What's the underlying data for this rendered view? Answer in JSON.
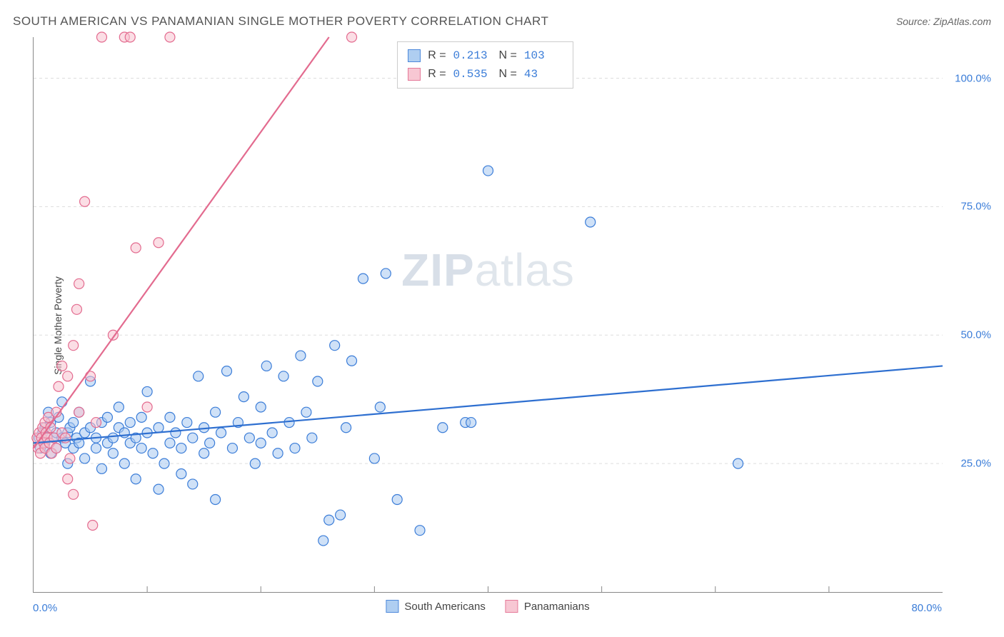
{
  "header": {
    "title": "SOUTH AMERICAN VS PANAMANIAN SINGLE MOTHER POVERTY CORRELATION CHART",
    "source_label": "Source: ZipAtlas.com"
  },
  "watermark": {
    "zip": "ZIP",
    "atlas": "atlas"
  },
  "chart": {
    "type": "scatter",
    "ylabel": "Single Mother Poverty",
    "xlim": [
      0,
      80
    ],
    "ylim": [
      0,
      108
    ],
    "xtick_positions": [
      0,
      40,
      80
    ],
    "xtick_labels": [
      "0.0%",
      "",
      "80.0%"
    ],
    "xtick_minor": [
      10,
      20,
      30,
      40,
      50,
      60,
      70
    ],
    "ytick_positions": [
      25,
      50,
      75,
      100
    ],
    "ytick_labels": [
      "25.0%",
      "50.0%",
      "75.0%",
      "100.0%"
    ],
    "background_color": "#ffffff",
    "grid_color": "#dddddd",
    "grid_dash": "4,4",
    "axis_color": "#888888",
    "tick_label_color": "#3b7dd8",
    "tick_label_fontsize": 15,
    "ylabel_fontsize": 14,
    "ylabel_color": "#444444",
    "marker_radius": 7,
    "marker_stroke_width": 1.2,
    "line_width": 2.2,
    "series": [
      {
        "name": "South Americans",
        "fill_color": "#a7c9f0",
        "stroke_color": "#3b7dd8",
        "fill_opacity": 0.55,
        "trend": {
          "x1": 0,
          "y1": 29,
          "x2": 80,
          "y2": 44,
          "color": "#2e6fd0"
        },
        "stats": {
          "R": "0.213",
          "N": "103"
        },
        "points": [
          [
            0.5,
            30
          ],
          [
            0.6,
            28
          ],
          [
            0.8,
            31
          ],
          [
            1,
            32
          ],
          [
            1,
            29
          ],
          [
            1.2,
            30
          ],
          [
            1.3,
            35
          ],
          [
            1.5,
            27
          ],
          [
            1.5,
            33
          ],
          [
            1.8,
            30
          ],
          [
            2,
            28
          ],
          [
            2,
            31
          ],
          [
            2.2,
            34
          ],
          [
            2.5,
            30
          ],
          [
            2.5,
            37
          ],
          [
            2.8,
            29
          ],
          [
            3,
            31
          ],
          [
            3,
            25
          ],
          [
            3.2,
            32
          ],
          [
            3.5,
            28
          ],
          [
            3.5,
            33
          ],
          [
            3.8,
            30
          ],
          [
            4,
            35
          ],
          [
            4,
            29
          ],
          [
            4.5,
            26
          ],
          [
            4.5,
            31
          ],
          [
            5,
            32
          ],
          [
            5,
            41
          ],
          [
            5.5,
            28
          ],
          [
            5.5,
            30
          ],
          [
            6,
            33
          ],
          [
            6,
            24
          ],
          [
            6.5,
            29
          ],
          [
            6.5,
            34
          ],
          [
            7,
            30
          ],
          [
            7,
            27
          ],
          [
            7.5,
            32
          ],
          [
            7.5,
            36
          ],
          [
            8,
            31
          ],
          [
            8,
            25
          ],
          [
            8.5,
            29
          ],
          [
            8.5,
            33
          ],
          [
            9,
            30
          ],
          [
            9,
            22
          ],
          [
            9.5,
            28
          ],
          [
            9.5,
            34
          ],
          [
            10,
            31
          ],
          [
            10,
            39
          ],
          [
            10.5,
            27
          ],
          [
            11,
            32
          ],
          [
            11,
            20
          ],
          [
            11.5,
            25
          ],
          [
            12,
            29
          ],
          [
            12,
            34
          ],
          [
            12.5,
            31
          ],
          [
            13,
            28
          ],
          [
            13,
            23
          ],
          [
            13.5,
            33
          ],
          [
            14,
            30
          ],
          [
            14,
            21
          ],
          [
            14.5,
            42
          ],
          [
            15,
            32
          ],
          [
            15,
            27
          ],
          [
            15.5,
            29
          ],
          [
            16,
            35
          ],
          [
            16,
            18
          ],
          [
            16.5,
            31
          ],
          [
            17,
            43
          ],
          [
            17.5,
            28
          ],
          [
            18,
            33
          ],
          [
            18.5,
            38
          ],
          [
            19,
            30
          ],
          [
            19.5,
            25
          ],
          [
            20,
            36
          ],
          [
            20,
            29
          ],
          [
            20.5,
            44
          ],
          [
            21,
            31
          ],
          [
            21.5,
            27
          ],
          [
            22,
            42
          ],
          [
            22.5,
            33
          ],
          [
            23,
            28
          ],
          [
            23.5,
            46
          ],
          [
            24,
            35
          ],
          [
            24.5,
            30
          ],
          [
            25,
            41
          ],
          [
            25.5,
            10
          ],
          [
            26,
            14
          ],
          [
            26.5,
            48
          ],
          [
            27,
            15
          ],
          [
            27.5,
            32
          ],
          [
            28,
            45
          ],
          [
            29,
            61
          ],
          [
            30,
            26
          ],
          [
            30.5,
            36
          ],
          [
            31,
            62
          ],
          [
            32,
            18
          ],
          [
            34,
            12
          ],
          [
            36,
            32
          ],
          [
            38,
            33
          ],
          [
            40,
            82
          ],
          [
            49,
            72
          ],
          [
            62,
            25
          ],
          [
            38.5,
            33
          ]
        ]
      },
      {
        "name": "Panamanians",
        "fill_color": "#f7c2cf",
        "stroke_color": "#e36b8f",
        "fill_opacity": 0.55,
        "trend": {
          "x1": 0,
          "y1": 28,
          "x2": 26,
          "y2": 108,
          "color": "#e36b8f"
        },
        "stats": {
          "R": "0.535",
          "N": "43"
        },
        "points": [
          [
            0.3,
            30
          ],
          [
            0.4,
            28
          ],
          [
            0.5,
            31
          ],
          [
            0.6,
            27
          ],
          [
            0.7,
            30
          ],
          [
            0.8,
            32
          ],
          [
            0.9,
            29
          ],
          [
            1,
            33
          ],
          [
            1,
            28
          ],
          [
            1.1,
            31
          ],
          [
            1.2,
            30
          ],
          [
            1.3,
            34
          ],
          [
            1.4,
            29
          ],
          [
            1.5,
            32
          ],
          [
            1.6,
            27
          ],
          [
            1.8,
            30
          ],
          [
            2,
            35
          ],
          [
            2,
            28
          ],
          [
            2.2,
            40
          ],
          [
            2.5,
            31
          ],
          [
            2.5,
            44
          ],
          [
            2.8,
            30
          ],
          [
            3,
            22
          ],
          [
            3,
            42
          ],
          [
            3.2,
            26
          ],
          [
            3.5,
            19
          ],
          [
            3.5,
            48
          ],
          [
            3.8,
            55
          ],
          [
            4,
            35
          ],
          [
            4,
            60
          ],
          [
            4.5,
            76
          ],
          [
            5,
            42
          ],
          [
            5.2,
            13
          ],
          [
            5.5,
            33
          ],
          [
            6,
            108
          ],
          [
            7,
            50
          ],
          [
            8,
            108
          ],
          [
            8.5,
            108
          ],
          [
            9,
            67
          ],
          [
            10,
            36
          ],
          [
            11,
            68
          ],
          [
            12,
            108
          ],
          [
            28,
            108
          ]
        ]
      }
    ]
  },
  "legend": {
    "series_label_color": "#444444",
    "series_label_fontsize": 15,
    "stats_border_color": "#cccccc",
    "stats_text_color": "#444444",
    "stats_value_color": "#3b7dd8",
    "stats_fontsize": 16
  }
}
